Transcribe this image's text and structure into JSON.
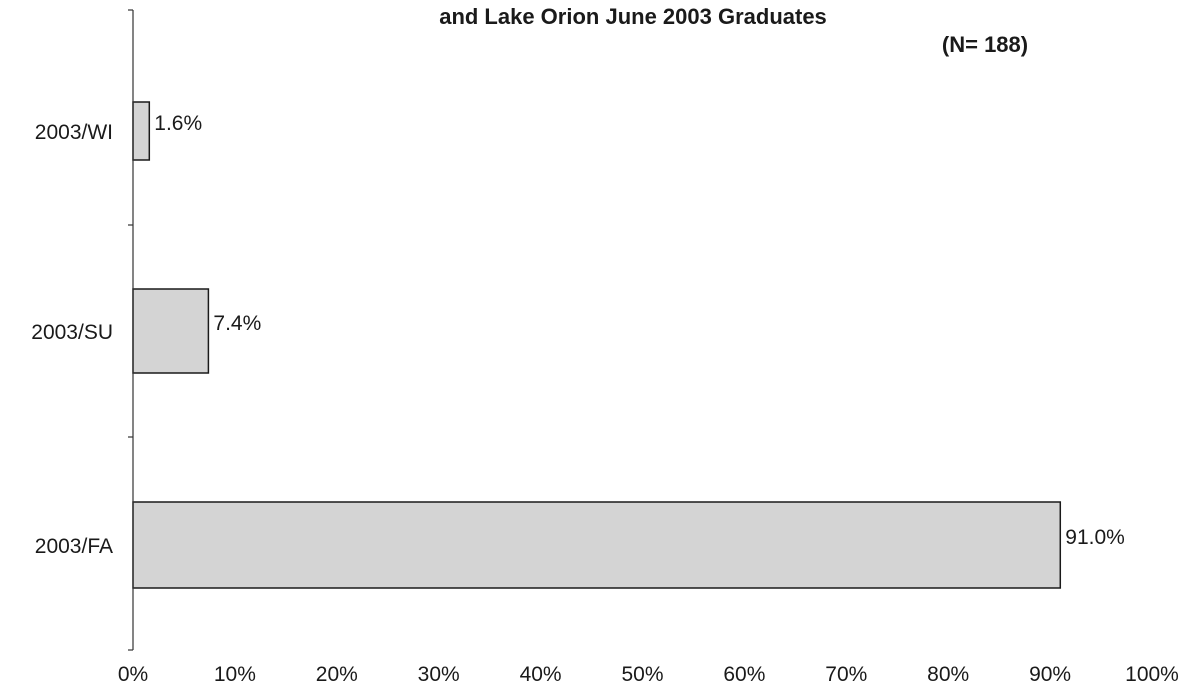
{
  "chart_data": {
    "type": "bar",
    "orientation": "horizontal",
    "title": "and Lake Orion June 2003 Graduates",
    "subtitle": "(N= 188)",
    "categories": [
      "2003/WI",
      "2003/SU",
      "2003/FA"
    ],
    "values": [
      1.6,
      7.4,
      91.0
    ],
    "data_labels": [
      "1.6%",
      "7.4%",
      "91.0%"
    ],
    "xlim": [
      0,
      100
    ],
    "x_ticks": [
      0,
      10,
      20,
      30,
      40,
      50,
      60,
      70,
      80,
      90,
      100
    ],
    "x_tick_labels": [
      "0%",
      "10%",
      "20%",
      "30%",
      "40%",
      "50%",
      "60%",
      "70%",
      "80%",
      "90%",
      "100%"
    ],
    "xlabel": "",
    "ylabel": "",
    "grid": false,
    "legend": "none",
    "bar_color": "#d4d4d4"
  }
}
